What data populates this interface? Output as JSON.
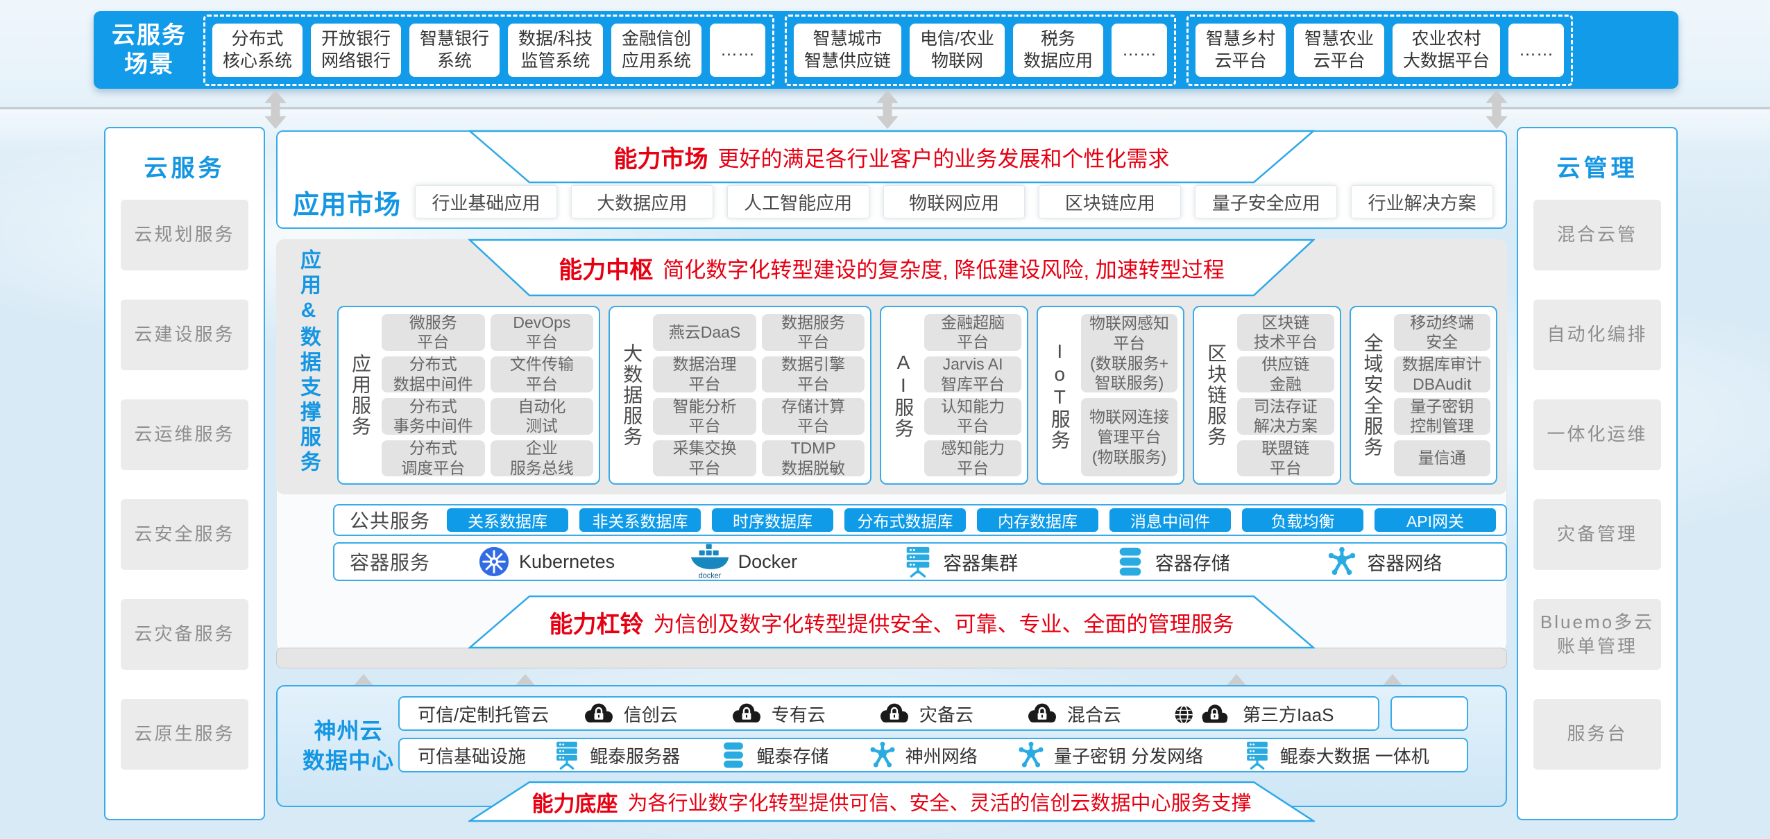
{
  "colors": {
    "primary_blue": "#129BE8",
    "border_blue": "#39ACE8",
    "accent_red": "#E60012",
    "pill_blue": "#0F9BE8",
    "title_blue": "#1496E3"
  },
  "scenario_bar": {
    "title": "云服务\n场景",
    "groups": [
      {
        "items": [
          "分布式\n核心系统",
          "开放银行\n网络银行",
          "智慧银行\n系统",
          "数据/科技\n监管系统",
          "金融信创\n应用系统",
          "……"
        ]
      },
      {
        "items": [
          "智慧城市\n智慧供应链",
          "电信/农业\n物联网",
          "税务\n数据应用",
          "……"
        ]
      },
      {
        "items": [
          "智慧乡村\n云平台",
          "智慧农业\n云平台",
          "农业农村\n大数据平台",
          "……"
        ]
      }
    ]
  },
  "cloud_services": {
    "title": "云服务",
    "items": [
      "云规划服务",
      "云建设服务",
      "云运维服务",
      "云安全服务",
      "云灾备服务",
      "云原生服务"
    ]
  },
  "cloud_management": {
    "title": "云管理",
    "items": [
      "混合云管",
      "自动化编排",
      "一体化运维",
      "灾备管理",
      "Bluemo多云\n账单管理",
      "服务台"
    ]
  },
  "banners": {
    "market": {
      "title": "能力市场",
      "desc": "更好的满足各行业客户的业务发展和个性化需求"
    },
    "hub": {
      "title": "能力中枢",
      "desc": "简化数字化转型建设的复杂度, 降低建设风险, 加速转型过程"
    },
    "barbell": {
      "title": "能力杠铃",
      "desc": "为信创及数字化转型提供安全、可靠、专业、全面的管理服务"
    },
    "base": {
      "title": "能力底座",
      "desc": "为各行业数字化转型提供可信、安全、灵活的信创云数据中心服务支撑"
    }
  },
  "app_market": {
    "label": "应用市场",
    "items": [
      "行业基础应用",
      "大数据应用",
      "人工智能应用",
      "物联网应用",
      "区块链应用",
      "量子安全应用",
      "行业解决方案"
    ]
  },
  "support_services": {
    "side_label": "应用&数据支撑服务",
    "groups": [
      {
        "label": "应用服务",
        "cols": 2,
        "items": [
          "微服务\n平台",
          "DevOps\n平台",
          "分布式\n数据中间件",
          "文件传输\n平台",
          "分布式\n事务中间件",
          "自动化\n测试",
          "分布式\n调度平台",
          "企业\n服务总线"
        ]
      },
      {
        "label": "大数据服务",
        "cols": 2,
        "items": [
          "燕云DaaS",
          "数据服务\n平台",
          "数据治理\n平台",
          "数据引擎\n平台",
          "智能分析\n平台",
          "存储计算\n平台",
          "采集交换\n平台",
          "TDMP\n数据脱敏"
        ]
      },
      {
        "label": "AI服务",
        "cols": 1,
        "items": [
          "金融超脑\n平台",
          "Jarvis AI\n智库平台",
          "认知能力\n平台",
          "感知能力\n平台"
        ]
      },
      {
        "label": "IoT服务",
        "cols": 1,
        "items": [
          "物联网感知平台\n(数联服务+\n智联服务)",
          "物联网连接\n管理平台\n(物联服务)"
        ]
      },
      {
        "label": "区块链服务",
        "cols": 1,
        "items": [
          "区块链\n技术平台",
          "供应链\n金融",
          "司法存证\n解决方案",
          "联盟链\n平台"
        ]
      },
      {
        "label": "全域安全服务",
        "cols": 1,
        "items": [
          "移动终端\n安全",
          "数据库审计\nDBAudit",
          "量子密钥\n控制管理",
          "量信通"
        ]
      }
    ]
  },
  "public_services": {
    "label": "公共服务",
    "items": [
      "关系数据库",
      "非关系数据库",
      "时序数据库",
      "分布式数据库",
      "内存数据库",
      "消息中间件",
      "负载均衡",
      "API网关"
    ]
  },
  "container_services": {
    "label": "容器服务",
    "items": [
      {
        "icon": "kubernetes-icon",
        "label": "Kubernetes"
      },
      {
        "icon": "docker-icon",
        "label": "Docker"
      },
      {
        "icon": "server-cluster-icon",
        "label": "容器集群"
      },
      {
        "icon": "storage-icon",
        "label": "容器存储"
      },
      {
        "icon": "network-icon",
        "label": "容器网络"
      }
    ]
  },
  "datacenter": {
    "title": "神州云\n数据中心",
    "hosted_row": {
      "label": "可信/定制托管云",
      "items": [
        {
          "icon": "cloud-lock-icon",
          "label": "信创云"
        },
        {
          "icon": "cloud-lock-icon",
          "label": "专有云"
        },
        {
          "icon": "cloud-lock-icon",
          "label": "灾备云"
        },
        {
          "icon": "cloud-lock-icon",
          "label": "混合云"
        },
        {
          "icon": "globe-cloud-lock-icon",
          "label": "第三方IaaS"
        }
      ]
    },
    "infra_row": {
      "label": "可信基础设施",
      "items": [
        {
          "icon": "server-rack-icon",
          "label": "鲲泰服务器"
        },
        {
          "icon": "storage-icon",
          "label": "鲲泰存储"
        },
        {
          "icon": "network-icon",
          "label": "神州网络"
        },
        {
          "icon": "network-icon",
          "label": "量子密钥 分发网络"
        },
        {
          "icon": "server-rack-icon",
          "label": "鲲泰大数据 一体机"
        }
      ]
    }
  }
}
